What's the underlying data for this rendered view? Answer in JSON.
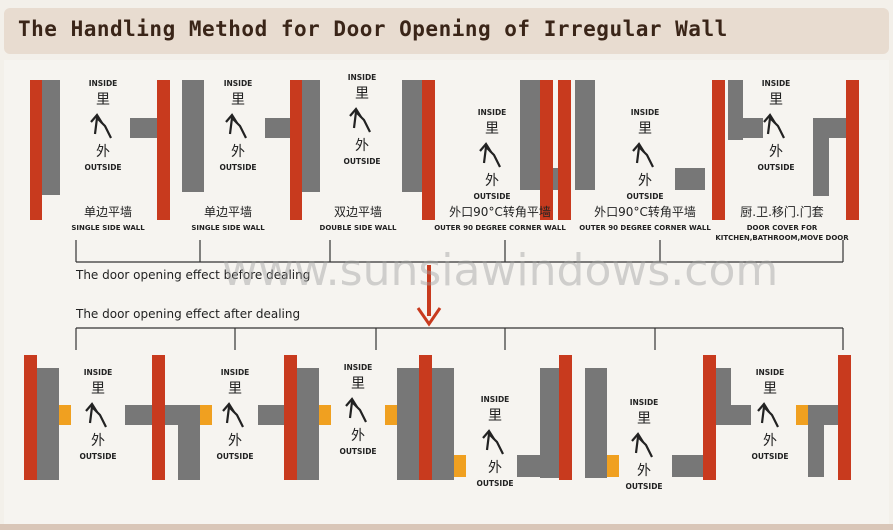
{
  "title": "The Handling Method for Door Opening of Irregular Wall",
  "labels": {
    "inside_en": "INSIDE",
    "inside_cn": "里",
    "outside_en": "OUTSIDE",
    "outside_cn": "外"
  },
  "top_row": [
    {
      "cn": "单边平墙",
      "en": "SINGLE SIDE WALL"
    },
    {
      "cn": "单边平墙",
      "en": "SINGLE SIDE WALL"
    },
    {
      "cn": "双边平墙",
      "en": "DOUBLE SIDE WALL"
    },
    {
      "cn": "外口90°C转角平墙",
      "en": "OUTER 90 DEGREE CORNER WALL"
    },
    {
      "cn": "外口90°C转角平墙",
      "en": "OUTER 90 DEGREE CORNER WALL"
    },
    {
      "cn": "厨.卫.移门.门套",
      "en": "DOOR COVER FOR",
      "en2": "KITCHEN,BATHROOM,MOVE DOOR"
    }
  ],
  "before_text": "The door opening effect before dealing",
  "after_text": "The door opening effect after dealing",
  "watermark": "www.sunsiawindows.com",
  "colors": {
    "wall": "#777777",
    "frame": "#c83a1e",
    "trim": "#f0a020",
    "line": "#333333",
    "arrow": "#c83a1e"
  }
}
